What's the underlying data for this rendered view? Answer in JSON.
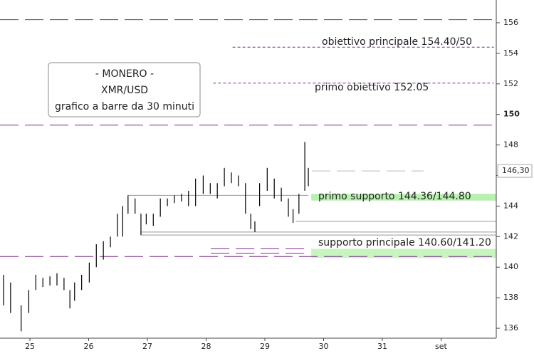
{
  "chart_data": {
    "type": "ohlc",
    "title_lines": [
      "- MONERO -",
      "XMR/USD",
      "grafico a barre da 30 minuti"
    ],
    "xlim": [
      -0.51,
      7.94
    ],
    "xticks": [
      {
        "value": 0,
        "label": "25"
      },
      {
        "value": 1,
        "label": "26"
      },
      {
        "value": 2,
        "label": "27"
      },
      {
        "value": 3,
        "label": "28"
      },
      {
        "value": 4,
        "label": "29"
      },
      {
        "value": 5,
        "label": "30"
      },
      {
        "value": 6,
        "label": "31"
      },
      {
        "value": 7,
        "label": "set"
      }
    ],
    "ylim": [
      135.35,
      157.49
    ],
    "yticks": [
      136,
      138,
      140,
      142,
      144,
      146,
      148,
      150,
      152,
      154,
      156
    ],
    "bold_ytick": 150,
    "last_price": {
      "value": 146.3,
      "label": "146,30"
    },
    "color": "#000000",
    "x": [
      -0.45,
      -0.33,
      -0.15,
      -0.02,
      0.1,
      0.22,
      0.34,
      0.46,
      0.58,
      0.68,
      0.76,
      0.88,
      1.01,
      1.13,
      1.25,
      1.37,
      1.49,
      1.58,
      1.67,
      1.79,
      1.89,
      1.98,
      2.1,
      2.22,
      2.34,
      2.46,
      2.58,
      2.7,
      2.82,
      2.95,
      3.07,
      3.19,
      3.31,
      3.43,
      3.55,
      3.67,
      3.76,
      3.83,
      3.91,
      4.04,
      4.16,
      4.28,
      4.4,
      4.48,
      4.58,
      4.68,
      4.74
    ],
    "high": [
      139.5,
      139,
      137.5,
      138.5,
      139.5,
      139.3,
      139.4,
      139.6,
      139.3,
      138.5,
      139,
      139.5,
      140.3,
      141.5,
      141.7,
      142,
      143.5,
      144,
      144.7,
      144.5,
      143.5,
      143.5,
      143.5,
      144.5,
      144.5,
      144.7,
      144.8,
      145,
      145.8,
      146,
      145.5,
      145.5,
      146.5,
      146.2,
      146,
      145.5,
      143.5,
      143,
      145.5,
      146.5,
      145.8,
      145.2,
      144.5,
      143.8,
      144.8,
      148.2,
      146.5
    ],
    "low": [
      137.5,
      137,
      135.8,
      137,
      138.5,
      138.7,
      138.8,
      138.8,
      138.5,
      137.3,
      137.8,
      138.5,
      139,
      140,
      140.5,
      141.3,
      142,
      142,
      143.5,
      143.5,
      142.1,
      142.8,
      142.7,
      143.3,
      144,
      144.2,
      144.3,
      144,
      144,
      144.8,
      144.8,
      144.5,
      145.3,
      145.5,
      145.3,
      143.5,
      142.5,
      142.3,
      144,
      145,
      144.5,
      144.3,
      143.3,
      142.9,
      143.5,
      145,
      145.3
    ],
    "levels": [
      {
        "value": 156.2,
        "from": -0.51,
        "to": 7.9,
        "color": "#7b2d8b",
        "dash": "dashed"
      },
      {
        "value": 154.4,
        "from": 3.45,
        "to": 7.9,
        "color": "#7b2d8b",
        "dash": "dotted"
      },
      {
        "value": 152.05,
        "from": 3.12,
        "to": 7.9,
        "color": "#7b2d8b",
        "dash": "dotted"
      },
      {
        "value": 149.3,
        "from": -0.51,
        "to": 7.9,
        "color": "#7b2d8b",
        "dash": "dashed"
      },
      {
        "value": 141.2,
        "from": 3.08,
        "to": 4.68,
        "color": "#7b2d8b",
        "dash": "dashed"
      },
      {
        "value": 140.9,
        "from": 3.08,
        "to": 4.68,
        "color": "#7b2d8b",
        "dash": "dashed"
      },
      {
        "value": 140.7,
        "from": -0.51,
        "to": 7.9,
        "color": "#7b2d8b",
        "dash": "dashed"
      },
      {
        "value": 144.7,
        "from": 1.67,
        "to": 4.74,
        "color": "#999999",
        "dash": "solid"
      },
      {
        "value": 143.0,
        "from": 4.53,
        "to": 7.94,
        "color": "#999999",
        "dash": "solid"
      },
      {
        "value": 142.3,
        "from": 1.89,
        "to": 7.94,
        "color": "#999999",
        "dash": "solid"
      },
      {
        "value": 142.1,
        "from": 1.89,
        "to": 7.94,
        "color": "#999999",
        "dash": "solid"
      },
      {
        "value": 146.3,
        "from": 4.8,
        "to": 6.7,
        "color": "#bbbbbb",
        "dash": "dashed"
      }
    ],
    "zones": [
      {
        "low": 144.36,
        "high": 144.8,
        "from": 4.79,
        "color": "#b8f0b0"
      },
      {
        "low": 140.6,
        "high": 141.2,
        "from": 4.79,
        "color": "#c8f4c0"
      }
    ],
    "annotations": [
      "obiettivo principale 154.40/50",
      "primo obiettivo 152.05",
      "primo supporto 144.36/144.80",
      "supporto principale 140.60/141.20"
    ]
  }
}
